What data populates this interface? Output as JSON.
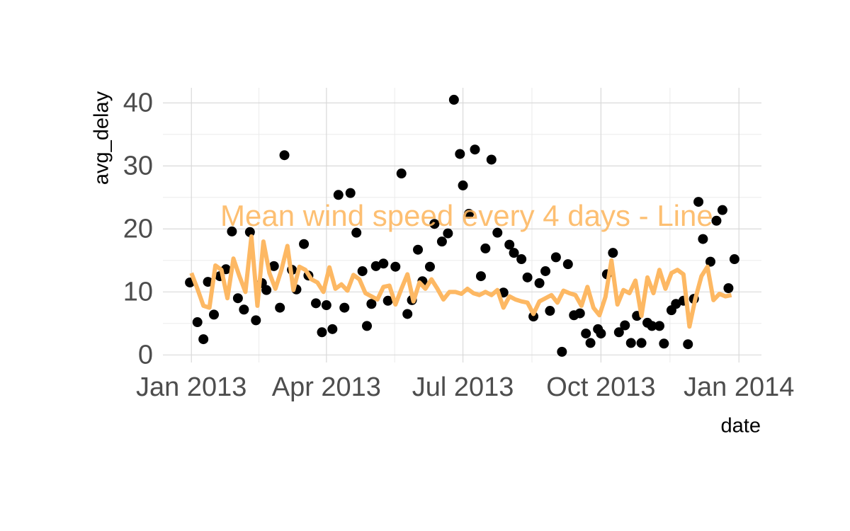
{
  "chart_data": {
    "type": "scatter",
    "annotation": "Mean wind speed every 4 days - Line",
    "x_label": "date",
    "y_label": "avg_delay",
    "xlim": [
      -19,
      380
    ],
    "ylim": [
      -1.2,
      42.4
    ],
    "xticks": [
      {
        "value": 0,
        "label": "Jan 2013"
      },
      {
        "value": 90,
        "label": "Apr 2013"
      },
      {
        "value": 181,
        "label": "Jul 2013"
      },
      {
        "value": 273,
        "label": "Oct 2013"
      },
      {
        "value": 365,
        "label": "Jan 2014"
      }
    ],
    "yticks": [
      0,
      10,
      20,
      30,
      40
    ],
    "grid": true,
    "series": [
      {
        "type": "scatter",
        "color": "#000000",
        "x": [
          -1,
          4,
          8,
          11,
          15,
          19,
          23,
          27,
          31,
          35,
          39,
          43,
          47,
          50,
          55,
          59,
          62,
          67,
          70,
          75,
          78,
          83,
          87,
          90,
          94,
          98,
          102,
          106,
          110,
          114,
          117,
          120,
          123,
          128,
          131,
          136,
          140,
          144,
          147,
          151,
          154,
          159,
          162,
          167,
          171,
          175,
          179,
          181,
          185,
          189,
          193,
          196,
          200,
          204,
          208,
          212,
          215,
          220,
          224,
          228,
          232,
          236,
          239,
          243,
          247,
          251,
          255,
          259,
          263,
          266,
          271,
          273,
          277,
          281,
          285,
          289,
          293,
          297,
          300,
          304,
          307,
          312,
          315,
          320,
          323,
          328,
          331,
          335,
          338,
          341,
          346,
          350,
          354,
          358,
          362
        ],
        "values": [
          11.5,
          5.2,
          2.5,
          11.6,
          6.4,
          12.5,
          13.6,
          19.6,
          9.0,
          7.2,
          19.5,
          5.5,
          11.4,
          10.3,
          14.1,
          7.5,
          31.7,
          13.5,
          10.4,
          17.6,
          12.6,
          8.2,
          3.6,
          7.9,
          4.1,
          25.4,
          7.5,
          25.7,
          19.4,
          13.3,
          4.6,
          8.1,
          14.1,
          14.5,
          8.6,
          14.0,
          28.8,
          6.5,
          8.7,
          16.7,
          11.7,
          14.0,
          20.8,
          18.0,
          19.3,
          40.5,
          31.9,
          26.9,
          22.4,
          32.6,
          12.5,
          16.9,
          31.0,
          19.4,
          9.9,
          17.5,
          16.2,
          15.2,
          12.3,
          6.1,
          11.4,
          13.3,
          7.0,
          15.5,
          0.5,
          14.4,
          6.3,
          6.6,
          3.4,
          1.9,
          4.1,
          3.4,
          12.8,
          16.2,
          3.6,
          4.7,
          1.9,
          6.2,
          1.9,
          5.1,
          4.6,
          4.6,
          1.8,
          7.1,
          8.1,
          8.6,
          1.7,
          8.9,
          24.3,
          18.4,
          14.8,
          21.3,
          23.0,
          10.6,
          15.2
        ]
      },
      {
        "type": "line",
        "color": "#fdb863",
        "x": [
          0,
          4,
          8,
          12,
          16,
          20,
          24,
          28,
          32,
          36,
          40,
          44,
          48,
          52,
          56,
          60,
          64,
          68,
          72,
          76,
          80,
          84,
          88,
          92,
          96,
          100,
          104,
          108,
          112,
          116,
          120,
          124,
          128,
          132,
          136,
          140,
          144,
          148,
          152,
          156,
          160,
          164,
          168,
          172,
          176,
          180,
          184,
          188,
          192,
          196,
          200,
          204,
          208,
          212,
          216,
          220,
          224,
          228,
          232,
          236,
          240,
          244,
          248,
          252,
          256,
          260,
          264,
          268,
          272,
          276,
          280,
          284,
          288,
          292,
          296,
          300,
          304,
          308,
          312,
          316,
          320,
          324,
          328,
          332,
          336,
          340,
          344,
          348,
          352,
          356,
          360
        ],
        "values": [
          13,
          10.5,
          7.8,
          7.5,
          14.2,
          13.5,
          9,
          15.3,
          12.5,
          10,
          18.8,
          7.8,
          18,
          13,
          10.5,
          13.5,
          17.3,
          10.3,
          14,
          13.5,
          12,
          11.5,
          10,
          13.9,
          10.5,
          11.2,
          10.2,
          12.7,
          12,
          9.8,
          9.3,
          8.8,
          10.8,
          11,
          8,
          10.5,
          12.8,
          8.5,
          11.5,
          10.5,
          12,
          10.5,
          8.8,
          10,
          10,
          9.7,
          10.5,
          9.8,
          9.5,
          10,
          9.5,
          10.3,
          7.5,
          9.3,
          8.8,
          8.5,
          8.3,
          6.5,
          8.5,
          9,
          9.5,
          8.3,
          10.2,
          9.8,
          9.5,
          7.8,
          10.8,
          7.5,
          6.3,
          9.2,
          15,
          8,
          10.3,
          9.8,
          11.8,
          6.2,
          12.3,
          9.8,
          13.5,
          10.5,
          13,
          13.5,
          12.8,
          4.5,
          9,
          12.5,
          14,
          8.7,
          9.7,
          9.3,
          9.5
        ]
      }
    ]
  }
}
